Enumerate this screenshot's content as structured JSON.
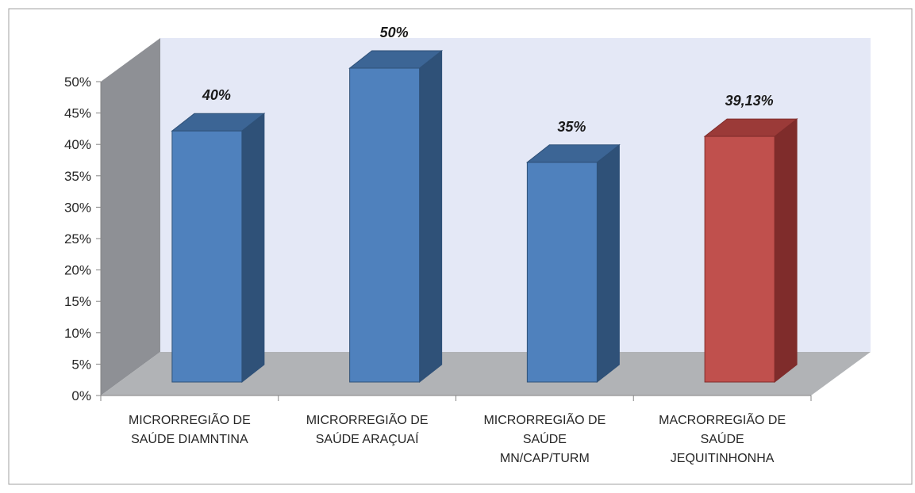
{
  "chart_data": {
    "type": "bar",
    "categories": [
      [
        "MICRORREGIÃO DE",
        "SAÚDE DIAMNTINA"
      ],
      [
        "MICRORREGIÃO DE",
        "SAÚDE ARAÇUAÍ"
      ],
      [
        "MICRORREGIÃO DE",
        "SAÚDE",
        "MN/CAP/TURM"
      ],
      [
        "MACRORREGIÃO DE",
        "SAÚDE",
        "JEQUITINHONHA"
      ]
    ],
    "values": [
      40,
      50,
      35,
      39.13
    ],
    "data_labels": [
      "40%",
      "50%",
      "35%",
      "39,13%"
    ],
    "ylim": [
      0,
      50
    ],
    "yticks": [
      "0%",
      "5%",
      "10%",
      "15%",
      "20%",
      "25%",
      "30%",
      "35%",
      "40%",
      "45%",
      "50%"
    ],
    "colors": {
      "bar_front": [
        "#4F81BD",
        "#4F81BD",
        "#4F81BD",
        "#C0504D"
      ],
      "bar_side": [
        "#2F5178",
        "#2F5178",
        "#2F5178",
        "#7F2C2B"
      ],
      "bar_top": [
        "#3C6595",
        "#3C6595",
        "#3C6595",
        "#9B3A38"
      ],
      "back_wall": "#E4E8F6",
      "side_wall": "#8E9095",
      "floor": "#B1B3B6"
    },
    "grid": false,
    "style": "3d-column"
  }
}
